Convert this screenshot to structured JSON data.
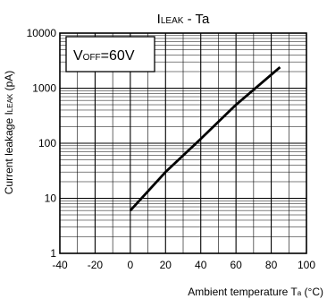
{
  "chart_data": {
    "type": "line",
    "title": {
      "main": "I",
      "sub": "LEAK",
      "rest": " - Ta"
    },
    "xlabel": {
      "main": "Ambient temperature T",
      "sub": "a",
      "rest": " (°C)"
    },
    "ylabel": {
      "main": "Current leakage I",
      "sub": "LEAK",
      "rest": " (pA)"
    },
    "xlim": [
      -40,
      100
    ],
    "ylim": [
      1,
      10000
    ],
    "yscale": "log",
    "grid": true,
    "x_ticks": [
      "-40",
      "-20",
      "0",
      "20",
      "40",
      "60",
      "80",
      "100"
    ],
    "y_ticks": [
      "1",
      "10",
      "100",
      "1000",
      "10000"
    ],
    "annotation": {
      "main": "V",
      "sub": "OFF",
      "rest": "=60V"
    },
    "series": [
      {
        "x": [
          0,
          20,
          40,
          60,
          85
        ],
        "y": [
          6,
          30,
          120,
          500,
          2400
        ]
      }
    ]
  }
}
